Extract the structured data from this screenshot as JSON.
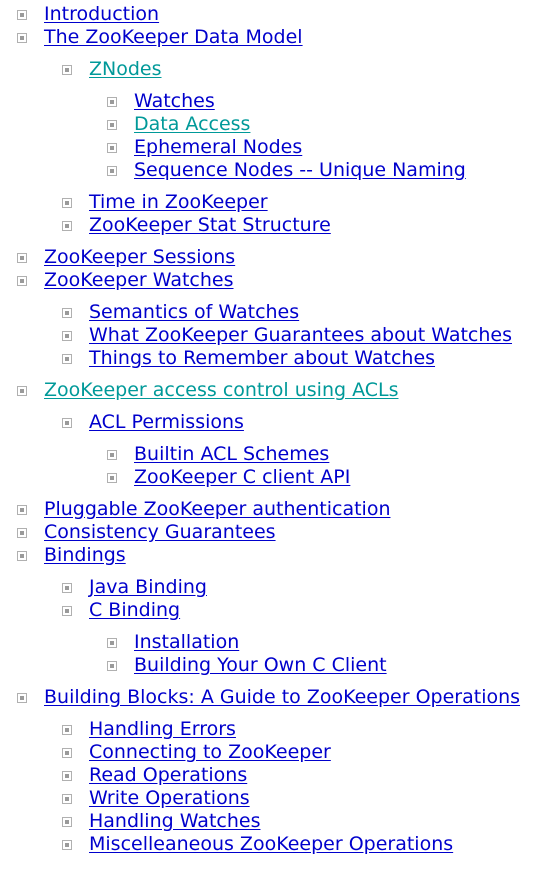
{
  "toc": [
    {
      "label": "Introduction",
      "level": 0,
      "visited": false
    },
    {
      "label": "The ZooKeeper Data Model",
      "level": 0,
      "visited": false
    },
    {
      "gap": true
    },
    {
      "label": "ZNodes",
      "level": 1,
      "visited": true
    },
    {
      "gap": true
    },
    {
      "label": "Watches",
      "level": 2,
      "visited": false
    },
    {
      "label": "Data Access",
      "level": 2,
      "visited": true
    },
    {
      "label": "Ephemeral Nodes",
      "level": 2,
      "visited": false
    },
    {
      "label": "Sequence Nodes -- Unique Naming",
      "level": 2,
      "visited": false
    },
    {
      "gap": true
    },
    {
      "label": "Time in ZooKeeper",
      "level": 1,
      "visited": false
    },
    {
      "label": "ZooKeeper Stat Structure",
      "level": 1,
      "visited": false
    },
    {
      "gap": true
    },
    {
      "label": "ZooKeeper Sessions",
      "level": 0,
      "visited": false
    },
    {
      "label": "ZooKeeper Watches",
      "level": 0,
      "visited": false
    },
    {
      "gap": true
    },
    {
      "label": "Semantics of Watches",
      "level": 1,
      "visited": false
    },
    {
      "label": "What ZooKeeper Guarantees about Watches",
      "level": 1,
      "visited": false
    },
    {
      "label": "Things to Remember about Watches",
      "level": 1,
      "visited": false
    },
    {
      "gap": true
    },
    {
      "label": "ZooKeeper access control using ACLs",
      "level": 0,
      "visited": true
    },
    {
      "gap": true
    },
    {
      "label": "ACL Permissions",
      "level": 1,
      "visited": false
    },
    {
      "gap": true
    },
    {
      "label": "Builtin ACL Schemes",
      "level": 2,
      "visited": false
    },
    {
      "label": "ZooKeeper C client API",
      "level": 2,
      "visited": false
    },
    {
      "gap": true
    },
    {
      "label": "Pluggable ZooKeeper authentication",
      "level": 0,
      "visited": false
    },
    {
      "label": "Consistency Guarantees",
      "level": 0,
      "visited": false
    },
    {
      "label": "Bindings",
      "level": 0,
      "visited": false
    },
    {
      "gap": true
    },
    {
      "label": "Java Binding",
      "level": 1,
      "visited": false
    },
    {
      "label": "C Binding",
      "level": 1,
      "visited": false
    },
    {
      "gap": true
    },
    {
      "label": "Installation",
      "level": 2,
      "visited": false
    },
    {
      "label": "Building Your Own C Client",
      "level": 2,
      "visited": false
    },
    {
      "gap": true
    },
    {
      "label": "Building Blocks: A Guide to ZooKeeper Operations",
      "level": 0,
      "visited": false
    },
    {
      "gap": true
    },
    {
      "label": "Handling Errors",
      "level": 1,
      "visited": false
    },
    {
      "label": "Connecting to ZooKeeper",
      "level": 1,
      "visited": false
    },
    {
      "label": "Read Operations",
      "level": 1,
      "visited": false
    },
    {
      "label": "Write Operations",
      "level": 1,
      "visited": false
    },
    {
      "label": "Handling Watches",
      "level": 1,
      "visited": false
    },
    {
      "label": "Miscelleaneous ZooKeeper Operations",
      "level": 1,
      "visited": false
    }
  ],
  "colors": {
    "link": "#0000cc",
    "visited": "#009999",
    "bullet": "#9a9a9a"
  },
  "icons": {
    "bullet": "square-bullet-icon"
  }
}
